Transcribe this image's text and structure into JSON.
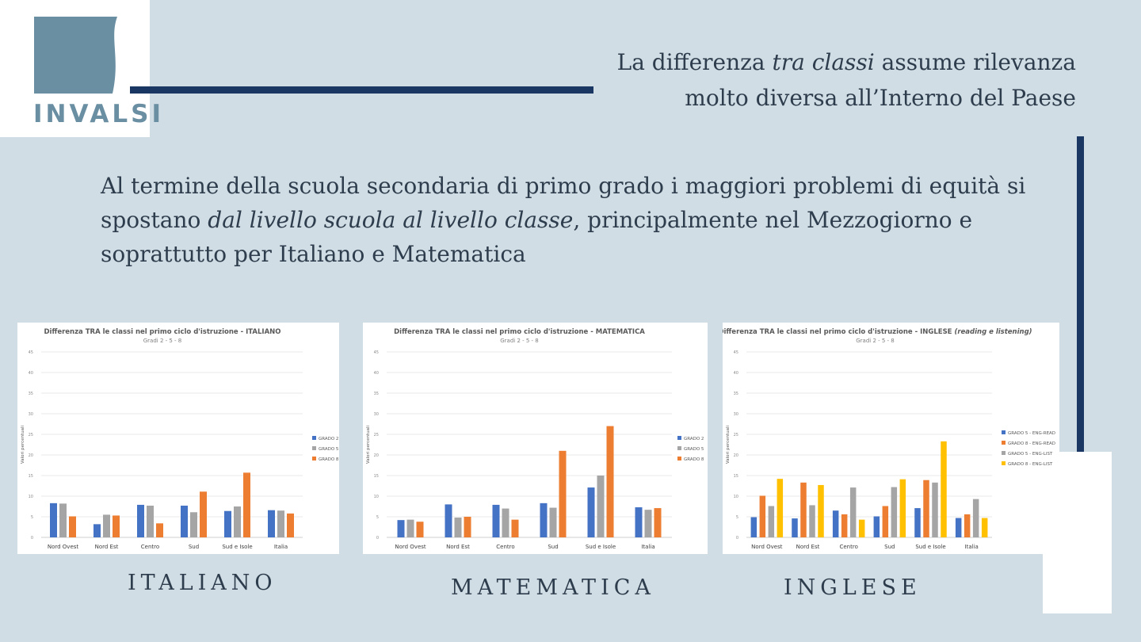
{
  "logo": {
    "text": "INVALSI"
  },
  "title": {
    "line1_pre": "La differenza ",
    "line1_em": "tra classi",
    "line1_post": " assume rilevanza",
    "line2": "molto diversa all’Interno del Paese"
  },
  "body": {
    "pre": "Al termine della scuola secondaria di primo grado i maggiori problemi di equità si spostano ",
    "em": "dal livello scuola al livello classe",
    "post": ", principalmente nel Mezzogiorno e soprattutto per Italiano e Matematica"
  },
  "captions": {
    "italiano": "ITALIANO",
    "matematica": "MATEMATICA",
    "inglese": "INGLESE"
  },
  "colors": {
    "background": "#d1dde4",
    "accent_navy": "#1a3763",
    "logo_blue": "#6a8fa3",
    "blue": "#4472c4",
    "orange": "#ed7d31",
    "gray": "#a5a5a5",
    "yellow": "#ffc000"
  },
  "chart_data": [
    {
      "type": "bar",
      "title": "Differenza TRA le classi nel primo ciclo d'istruzione - ITALIANO",
      "subtitle": "Gradi 2 - 5 - 8",
      "xlabel": "",
      "ylabel": "Valori percentuali",
      "ylim": [
        0,
        45
      ],
      "yticks": [
        "0",
        "5",
        "10",
        "15",
        "20",
        "25",
        "30",
        "35",
        "40",
        "45"
      ],
      "grid": true,
      "legend_position": "right",
      "categories": [
        "Nord Ovest",
        "Nord Est",
        "Centro",
        "Sud",
        "Sud e Isole",
        "Italia"
      ],
      "series": [
        {
          "name": "GRADO 2",
          "color": "#4472c4",
          "values": [
            8.3,
            3.2,
            7.9,
            7.7,
            6.4,
            6.6
          ]
        },
        {
          "name": "GRADO 5",
          "color": "#a5a5a5",
          "values": [
            8.2,
            5.5,
            7.7,
            6.1,
            7.5,
            6.5
          ]
        },
        {
          "name": "GRADO 8",
          "color": "#ed7d31",
          "values": [
            5.1,
            5.3,
            3.4,
            11.1,
            15.7,
            5.8
          ]
        }
      ]
    },
    {
      "type": "bar",
      "title": "Differenza TRA le classi nel primo ciclo d'istruzione - MATEMATICA",
      "subtitle": "Gradi 2 - 5 - 8",
      "xlabel": "",
      "ylabel": "Valori percentuali",
      "ylim": [
        0,
        45
      ],
      "yticks": [
        "0",
        "5",
        "10",
        "15",
        "20",
        "25",
        "30",
        "35",
        "40",
        "45"
      ],
      "grid": true,
      "legend_position": "right",
      "categories": [
        "Nord Ovest",
        "Nord Est",
        "Centro",
        "Sud",
        "Sud e Isole",
        "Italia"
      ],
      "series": [
        {
          "name": "GRADO 2",
          "color": "#4472c4",
          "values": [
            4.2,
            8.0,
            7.9,
            8.3,
            12.1,
            7.3
          ]
        },
        {
          "name": "GRADO 5",
          "color": "#a5a5a5",
          "values": [
            4.3,
            4.8,
            7.0,
            7.2,
            15.0,
            6.7
          ]
        },
        {
          "name": "GRADO 8",
          "color": "#ed7d31",
          "values": [
            3.8,
            5.0,
            4.3,
            21.0,
            27.0,
            7.1
          ]
        }
      ]
    },
    {
      "type": "bar",
      "title": "Differenza TRA le classi nel primo ciclo d'istruzione - INGLESE",
      "title_italic": "(reading e listening)",
      "subtitle": "Gradi 2 - 5 - 8",
      "xlabel": "",
      "ylabel": "Valori percentuali",
      "ylim": [
        0,
        45
      ],
      "yticks": [
        "0",
        "5",
        "10",
        "15",
        "20",
        "25",
        "30",
        "35",
        "40",
        "45"
      ],
      "grid": true,
      "legend_position": "right",
      "categories": [
        "Nord Ovest",
        "Nord Est",
        "Centro",
        "Sud",
        "Sud e Isole",
        "Italia"
      ],
      "series": [
        {
          "name": "GRADO 5 - ENG-READ",
          "color": "#4472c4",
          "values": [
            4.9,
            4.6,
            6.5,
            5.1,
            7.1,
            4.7
          ]
        },
        {
          "name": "GRADO 8 - ENG-READ",
          "color": "#ed7d31",
          "values": [
            10.1,
            13.3,
            5.6,
            7.6,
            13.9,
            5.6
          ]
        },
        {
          "name": "GRADO 5 - ENG-LIST",
          "color": "#a5a5a5",
          "values": [
            7.6,
            7.8,
            12.1,
            12.2,
            13.3,
            9.3
          ]
        },
        {
          "name": "GRADO 8 - ENG-LIST",
          "color": "#ffc000",
          "values": [
            14.2,
            12.7,
            4.3,
            14.1,
            23.3,
            4.7
          ]
        }
      ]
    }
  ]
}
